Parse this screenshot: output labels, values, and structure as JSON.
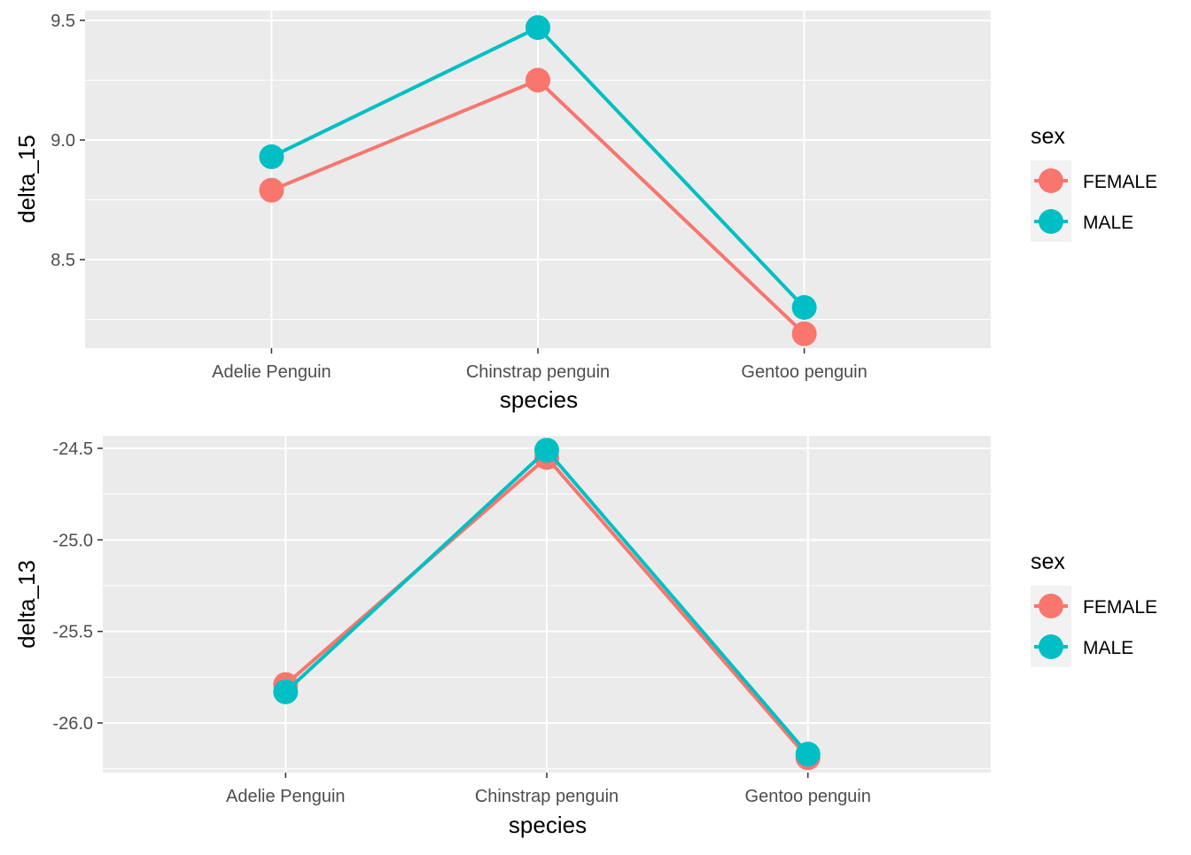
{
  "chart_data": [
    {
      "type": "line",
      "xlabel": "species",
      "ylabel": "delta_15",
      "categories": [
        "Adelie Penguin",
        "Chinstrap penguin",
        "Gentoo penguin"
      ],
      "ylim": [
        8.2,
        9.5
      ],
      "yticks": [
        "9.5",
        "9.0",
        "8.5"
      ],
      "ytick_values": [
        9.5,
        9.0,
        8.5
      ],
      "legend_title": "sex",
      "legend_position": "right",
      "grid": true,
      "series": [
        {
          "name": "FEMALE",
          "color": "#F8766D",
          "values": [
            8.79,
            9.25,
            8.19
          ]
        },
        {
          "name": "MALE",
          "color": "#00BFC4",
          "values": [
            8.93,
            9.47,
            8.3
          ]
        }
      ]
    },
    {
      "type": "line",
      "xlabel": "species",
      "ylabel": "delta_13",
      "categories": [
        "Adelie Penguin",
        "Chinstrap penguin",
        "Gentoo penguin"
      ],
      "ylim": [
        -26.2,
        -24.5
      ],
      "yticks": [
        "-24.5",
        "-25.0",
        "-25.5",
        "-26.0"
      ],
      "ytick_values": [
        -24.5,
        -25.0,
        -25.5,
        -26.0
      ],
      "legend_title": "sex",
      "legend_position": "right",
      "grid": true,
      "series": [
        {
          "name": "FEMALE",
          "color": "#F8766D",
          "values": [
            -25.79,
            -24.55,
            -26.19
          ]
        },
        {
          "name": "MALE",
          "color": "#00BFC4",
          "values": [
            -25.83,
            -24.51,
            -26.17
          ]
        }
      ]
    }
  ]
}
